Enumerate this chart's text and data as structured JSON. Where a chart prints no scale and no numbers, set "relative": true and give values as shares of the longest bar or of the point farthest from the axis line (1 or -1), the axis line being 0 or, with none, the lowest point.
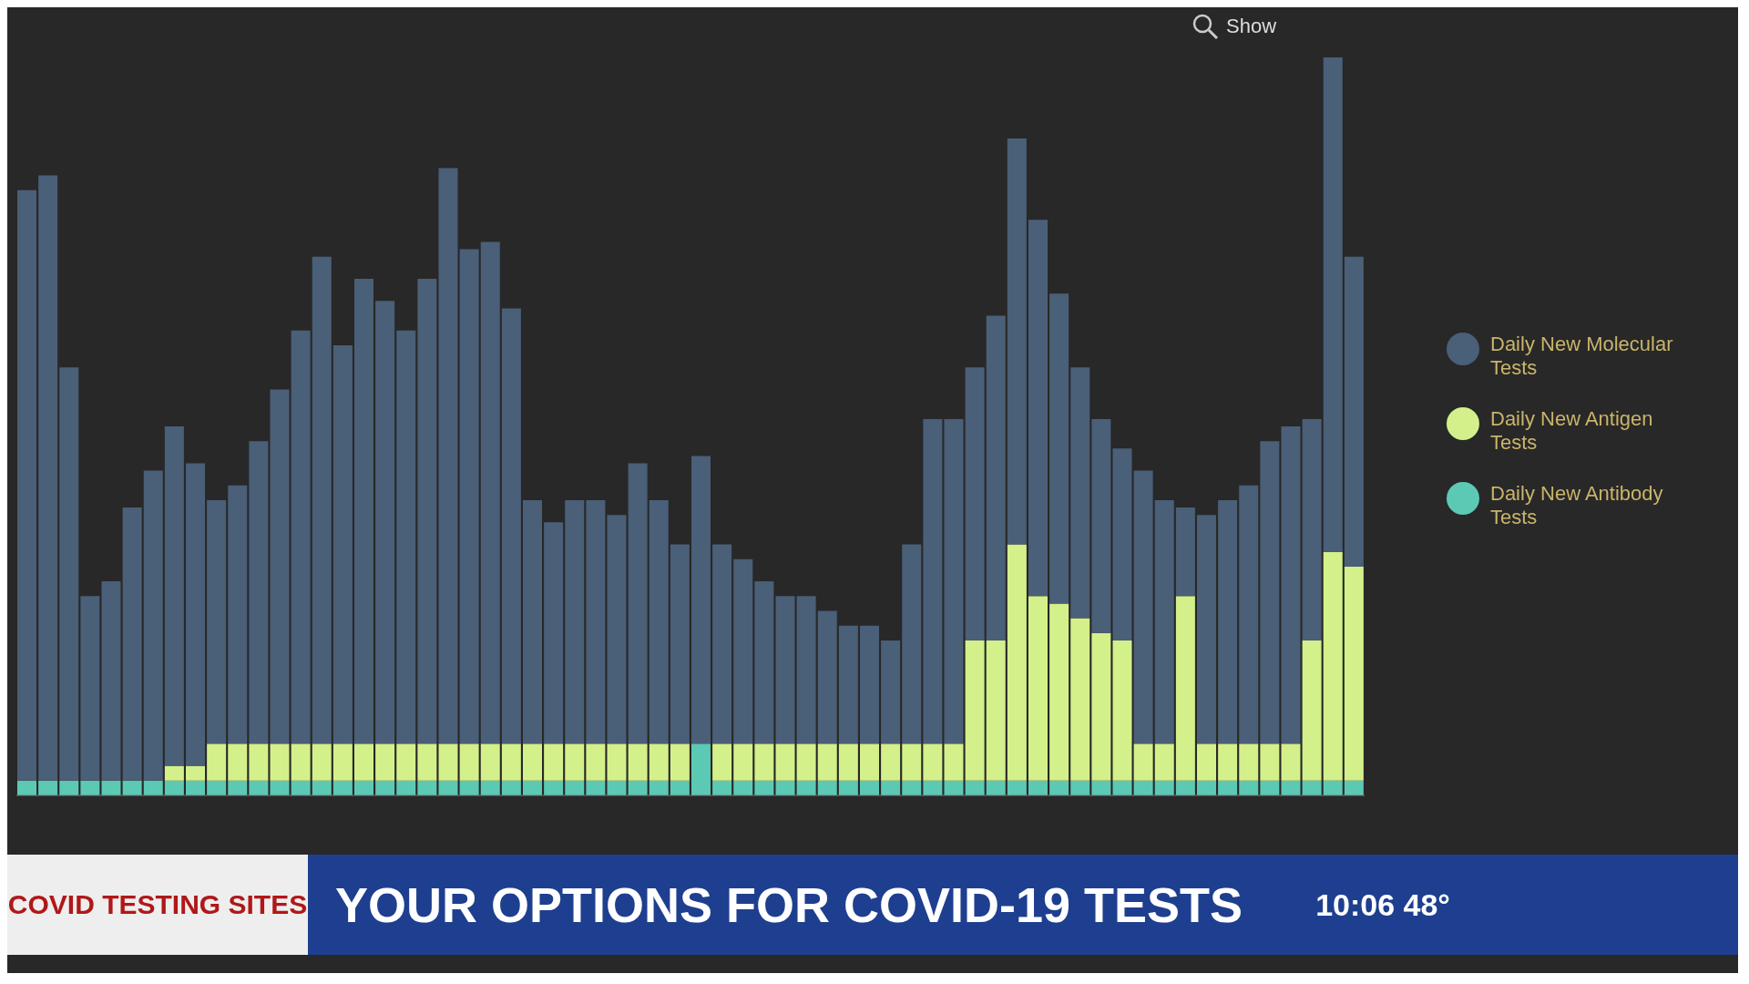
{
  "chart_data": {
    "type": "bar",
    "title": "YOUR OPTIONS FOR COVID-19 TESTS",
    "relative": true,
    "stacked": true,
    "legend": "right",
    "annotations": [
      "Show",
      "COVID TESTING SITES",
      "10:06 48°"
    ],
    "categories": [
      null,
      null,
      null,
      null,
      null,
      null,
      null,
      null,
      null,
      null,
      null,
      null,
      null,
      null,
      null,
      null,
      null,
      null,
      null,
      null,
      null,
      null,
      null,
      null,
      null,
      null,
      null,
      null,
      null,
      null,
      null,
      null,
      null,
      null,
      null,
      null,
      null,
      null,
      null,
      null,
      null,
      null,
      null,
      null,
      null,
      null,
      null,
      null,
      null,
      null,
      null,
      null,
      null,
      null,
      null,
      null,
      null,
      null,
      null,
      null,
      null,
      null,
      null,
      null
    ],
    "series": [
      {
        "name": "Daily New Antibody Tests",
        "color": "#5cc9b5",
        "values": [
          0.02,
          0.02,
          0.02,
          0.02,
          0.02,
          0.02,
          0.02,
          0.02,
          0.02,
          0.02,
          0.02,
          0.02,
          0.02,
          0.02,
          0.02,
          0.02,
          0.02,
          0.02,
          0.02,
          0.02,
          0.02,
          0.02,
          0.02,
          0.02,
          0.02,
          0.02,
          0.02,
          0.02,
          0.02,
          0.02,
          0.02,
          0.02,
          0.07,
          0.02,
          0.02,
          0.02,
          0.02,
          0.02,
          0.02,
          0.02,
          0.02,
          0.02,
          0.02,
          0.02,
          0.02,
          0.02,
          0.02,
          0.02,
          0.02,
          0.02,
          0.02,
          0.02,
          0.02,
          0.02,
          0.02,
          0.02,
          0.02,
          0.02,
          0.02,
          0.02,
          0.02,
          0.02,
          0.02,
          0.02
        ]
      },
      {
        "name": "Daily New Antigen Tests",
        "color": "#d4f08a",
        "values": [
          0,
          0,
          0,
          0,
          0,
          0,
          0,
          0.02,
          0.02,
          0.05,
          0.05,
          0.05,
          0.05,
          0.05,
          0.05,
          0.05,
          0.05,
          0.05,
          0.05,
          0.05,
          0.05,
          0.05,
          0.05,
          0.05,
          0.05,
          0.05,
          0.05,
          0.05,
          0.05,
          0.05,
          0.05,
          0.05,
          0,
          0.05,
          0.05,
          0.05,
          0.05,
          0.05,
          0.05,
          0.05,
          0.05,
          0.05,
          0.05,
          0.05,
          0.05,
          0.19,
          0.19,
          0.32,
          0.25,
          0.24,
          0.22,
          0.2,
          0.19,
          0.05,
          0.05,
          0.25,
          0.05,
          0.05,
          0.05,
          0.05,
          0.05,
          0.19,
          0.31,
          0.29
        ]
      },
      {
        "name": "Daily New Molecular Tests",
        "color": "#4a5f78",
        "values": [
          0.8,
          0.82,
          0.56,
          0.25,
          0.27,
          0.37,
          0.42,
          0.46,
          0.41,
          0.33,
          0.35,
          0.41,
          0.48,
          0.56,
          0.66,
          0.54,
          0.63,
          0.6,
          0.56,
          0.63,
          0.78,
          0.67,
          0.68,
          0.59,
          0.33,
          0.3,
          0.33,
          0.33,
          0.31,
          0.38,
          0.33,
          0.27,
          0.39,
          0.27,
          0.25,
          0.22,
          0.2,
          0.2,
          0.18,
          0.16,
          0.16,
          0.14,
          0.27,
          0.44,
          0.44,
          0.37,
          0.44,
          0.55,
          0.51,
          0.42,
          0.34,
          0.29,
          0.26,
          0.37,
          0.33,
          0.12,
          0.31,
          0.33,
          0.35,
          0.41,
          0.43,
          0.3,
          0.67,
          0.42
        ]
      }
    ]
  }
}
